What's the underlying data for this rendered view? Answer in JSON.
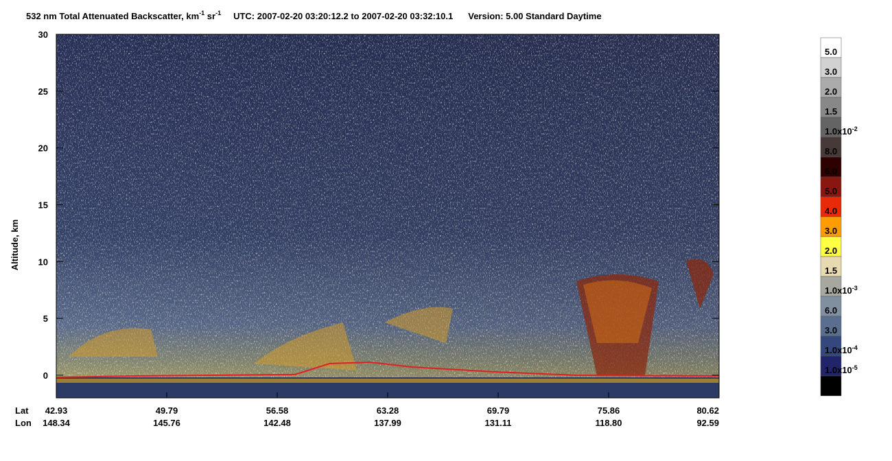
{
  "chart_data": {
    "type": "curtain",
    "title": {
      "main": "532 nm Total Attenuated Backscatter, km",
      "exp1": "-1",
      "unit2": " sr",
      "exp2": "-1",
      "utc": "UTC:  2007-02-20 03:20:12.2  to  2007-02-20 03:32:10.1",
      "version": "Version: 5.00  Standard  Daytime"
    },
    "y_label": "Altitude, km",
    "ylim": [
      -2,
      30
    ],
    "yticks": [
      0,
      5,
      10,
      15,
      20,
      25,
      30
    ],
    "x_row_labels": [
      "Lat",
      "Lon"
    ],
    "lat": [
      "42.93",
      "49.79",
      "56.58",
      "63.28",
      "69.79",
      "75.86",
      "80.62"
    ],
    "lon": [
      "148.34",
      "145.76",
      "142.48",
      "137.99",
      "131.11",
      "118.80",
      "92.59"
    ],
    "colorbar": {
      "colors": [
        "#ffffff",
        "#d2d2d2",
        "#ababab",
        "#888888",
        "#646464",
        "#463a38",
        "#2e0000",
        "#8a1610",
        "#e82a08",
        "#ff9c00",
        "#ffff44",
        "#e8dab0",
        "#a6a8a0",
        "#8090a0",
        "#5a6e90",
        "#34487e",
        "#22246a",
        "#000000"
      ],
      "labels": [
        "5.0",
        "3.0",
        "2.0",
        "1.5",
        {
          "base": "1.0x10",
          "exp": "-2"
        },
        "8.0",
        "6.0",
        "5.0",
        "4.0",
        "3.0",
        "2.0",
        "1.5",
        {
          "base": "1.0x10",
          "exp": "-3"
        },
        "6.0",
        "3.0",
        {
          "base": "1.0x10",
          "exp": "-4"
        },
        {
          "base": "1.0x10",
          "exp": "-5"
        }
      ]
    }
  }
}
